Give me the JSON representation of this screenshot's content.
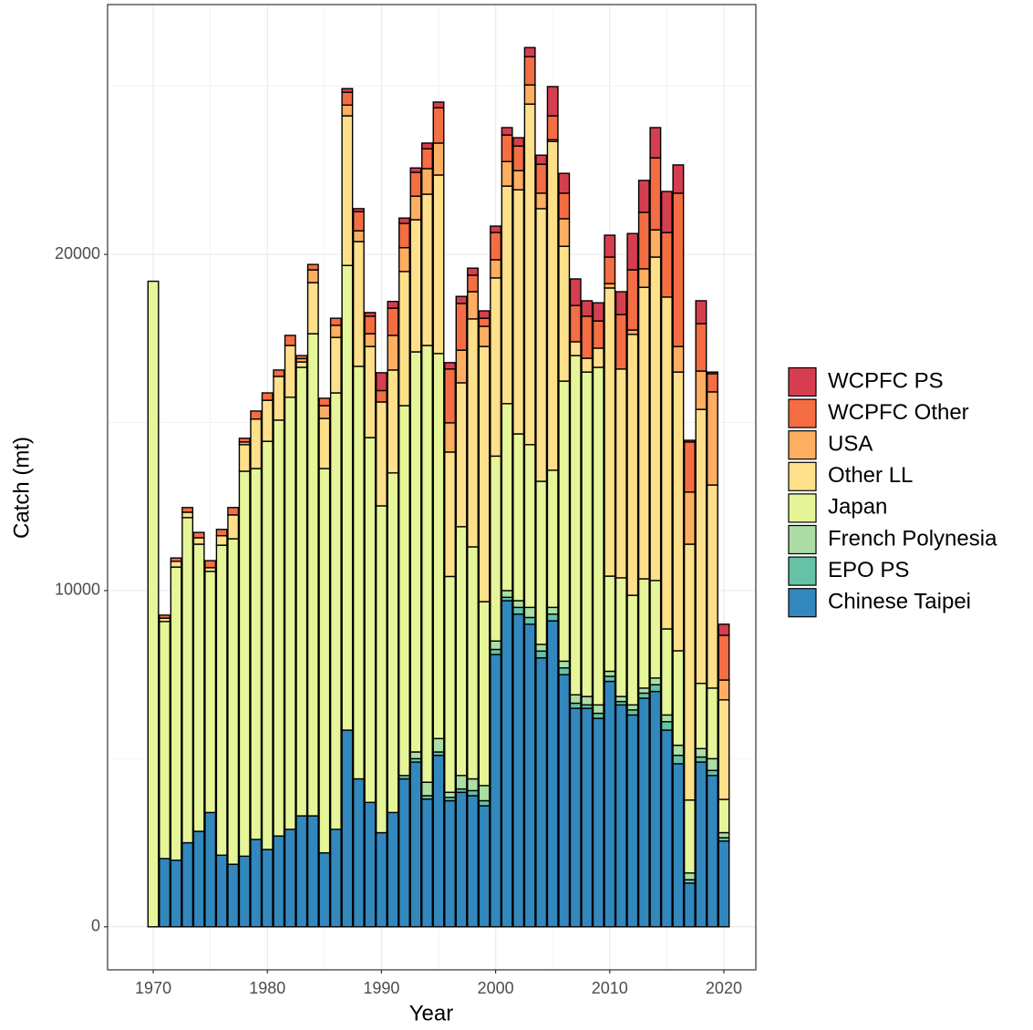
{
  "chart_data": {
    "type": "stacked-bar",
    "x_label": "Year",
    "y_label": "Catch (mt)",
    "x": [
      1969,
      1970,
      1971,
      1972,
      1973,
      1974,
      1975,
      1976,
      1977,
      1978,
      1979,
      1980,
      1981,
      1982,
      1983,
      1984,
      1985,
      1986,
      1987,
      1988,
      1989,
      1990,
      1991,
      1992,
      1993,
      1994,
      1995,
      1996,
      1997,
      1998,
      1999,
      2000,
      2001,
      2002,
      2003,
      2004,
      2005,
      2006,
      2007,
      2008,
      2009,
      2010,
      2011,
      2012,
      2013,
      2014,
      2015,
      2016,
      2017,
      2018,
      2019,
      2020
    ],
    "series": [
      {
        "name": "WCPFC PS",
        "color": "#D53E4F",
        "values": [
          0,
          0,
          0,
          0,
          0,
          0,
          0,
          0,
          0,
          0,
          0,
          0,
          0,
          0,
          0,
          0,
          0,
          0,
          110,
          90,
          110,
          530,
          200,
          160,
          130,
          170,
          170,
          190,
          210,
          210,
          220,
          190,
          220,
          250,
          270,
          270,
          870,
          590,
          790,
          460,
          540,
          650,
          680,
          1080,
          950,
          900,
          1220,
          840,
          50,
          680,
          50,
          330
        ]
      },
      {
        "name": "WCPFC Other",
        "color": "#F46D43",
        "values": [
          0,
          0,
          90,
          100,
          140,
          160,
          210,
          190,
          220,
          110,
          240,
          220,
          190,
          300,
          90,
          160,
          220,
          210,
          380,
          570,
          520,
          340,
          810,
          720,
          710,
          590,
          1050,
          1600,
          1390,
          490,
          240,
          810,
          790,
          730,
          840,
          860,
          710,
          760,
          1080,
          1250,
          810,
          790,
          1620,
          1790,
          1680,
          2140,
          1920,
          4560,
          1490,
          1410,
          540,
          1330
        ]
      },
      {
        "name": "USA",
        "color": "#FDAE61",
        "values": [
          0,
          0,
          0,
          0,
          0,
          0,
          0,
          0,
          0,
          80,
          0,
          0,
          0,
          0,
          100,
          380,
          380,
          360,
          320,
          320,
          380,
          0,
          1030,
          710,
          700,
          760,
          950,
          870,
          970,
          810,
          600,
          540,
          730,
          570,
          570,
          460,
          50,
          820,
          0,
          0,
          0,
          130,
          0,
          130,
          550,
          810,
          0,
          760,
          1550,
          1140,
          2770,
          590
        ]
      },
      {
        "name": "Other LL",
        "color": "#FEE08B",
        "values": [
          0,
          0,
          100,
          170,
          160,
          190,
          110,
          280,
          710,
          790,
          1470,
          1220,
          1300,
          1540,
          160,
          1520,
          1490,
          1650,
          4450,
          3710,
          2710,
          3090,
          3060,
          3990,
          3930,
          4500,
          5310,
          3700,
          4280,
          6780,
          7590,
          5300,
          6470,
          7260,
          10130,
          8110,
          9780,
          4010,
          410,
          410,
          570,
          8570,
          6210,
          7760,
          8670,
          9620,
          9870,
          8290,
          7610,
          8150,
          6040,
          2960
        ]
      },
      {
        "name": "Japan",
        "color": "#E6F598",
        "values": [
          0,
          19200,
          7050,
          8720,
          9670,
          8540,
          7170,
          9220,
          9680,
          11450,
          11030,
          12140,
          12370,
          12850,
          13340,
          14340,
          11430,
          12980,
          13820,
          12270,
          10850,
          9720,
          10100,
          11000,
          11900,
          12990,
          11450,
          6420,
          7400,
          6900,
          5470,
          5500,
          5560,
          4960,
          4840,
          4850,
          4080,
          8330,
          10090,
          9650,
          10040,
          2830,
          3530,
          3260,
          3250,
          2900,
          2560,
          2810,
          2170,
          1940,
          2100,
          990
        ]
      },
      {
        "name": "French Polynesia",
        "color": "#ABDDA4",
        "values": [
          0,
          0,
          0,
          0,
          0,
          0,
          0,
          0,
          0,
          0,
          0,
          0,
          0,
          0,
          0,
          0,
          0,
          0,
          0,
          0,
          0,
          0,
          0,
          0,
          200,
          400,
          400,
          150,
          400,
          350,
          450,
          250,
          200,
          200,
          300,
          200,
          200,
          200,
          250,
          250,
          250,
          150,
          150,
          150,
          150,
          200,
          200,
          300,
          200,
          250,
          350,
          150
        ]
      },
      {
        "name": "EPO PS",
        "color": "#66C2A5",
        "values": [
          0,
          0,
          0,
          0,
          0,
          0,
          0,
          0,
          0,
          0,
          0,
          0,
          0,
          0,
          0,
          0,
          0,
          0,
          0,
          0,
          0,
          0,
          0,
          100,
          100,
          100,
          100,
          100,
          100,
          150,
          150,
          150,
          100,
          200,
          200,
          200,
          200,
          200,
          150,
          100,
          150,
          150,
          100,
          150,
          150,
          200,
          250,
          250,
          100,
          150,
          150,
          100
        ]
      },
      {
        "name": "Chinese Taipei",
        "color": "#3288BD",
        "values": [
          0,
          0,
          2030,
          1980,
          2500,
          2840,
          3400,
          2130,
          1860,
          2100,
          2600,
          2300,
          2700,
          2900,
          3300,
          3300,
          2200,
          2900,
          5850,
          4400,
          3700,
          2800,
          3400,
          4400,
          4900,
          3800,
          5100,
          3750,
          4000,
          3900,
          3600,
          8100,
          9700,
          9300,
          9000,
          8000,
          9100,
          7500,
          6500,
          6500,
          6200,
          7300,
          6600,
          6300,
          6800,
          7000,
          5850,
          4850,
          1300,
          4900,
          4500,
          2550
        ]
      }
    ],
    "xlim": [
      1966,
      2022.8
    ],
    "xticks": [
      1970,
      1980,
      1990,
      2000,
      2010,
      2020
    ],
    "ylim": [
      -1280,
      27430
    ],
    "yticks": [
      0,
      10000,
      20000
    ],
    "grid": true,
    "legend": "right"
  }
}
